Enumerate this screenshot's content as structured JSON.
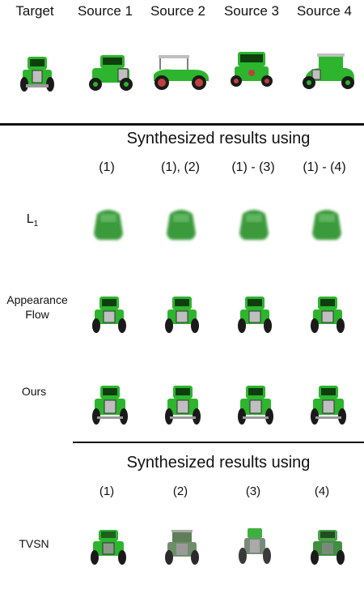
{
  "header": {
    "columns": [
      "Target",
      "Source 1",
      "Source 2",
      "Source 3",
      "Source 4"
    ]
  },
  "section1": {
    "title": "Synthesized results using",
    "column_tags": [
      "(1)",
      "(1), (2)",
      "(1) - (3)",
      "(1) - (4)"
    ],
    "rows": [
      {
        "label": "L",
        "subscript": "1"
      },
      {
        "label_line1": "Appearance",
        "label_line2": "Flow"
      },
      {
        "label": "Ours"
      }
    ]
  },
  "section2": {
    "title": "Synthesized results using",
    "column_tags": [
      "(1)",
      "(2)",
      "(3)",
      "(4)"
    ],
    "rows": [
      {
        "label": "TVSN"
      }
    ]
  },
  "colors": {
    "car_green": "#2db52d",
    "car_dark_green": "#157a15",
    "blur_green": "#3a9a3a",
    "grey_green": "#6f8f6a",
    "tire": "#1a1a1a",
    "grille": "#bfbfbf",
    "rule": "#111111"
  }
}
